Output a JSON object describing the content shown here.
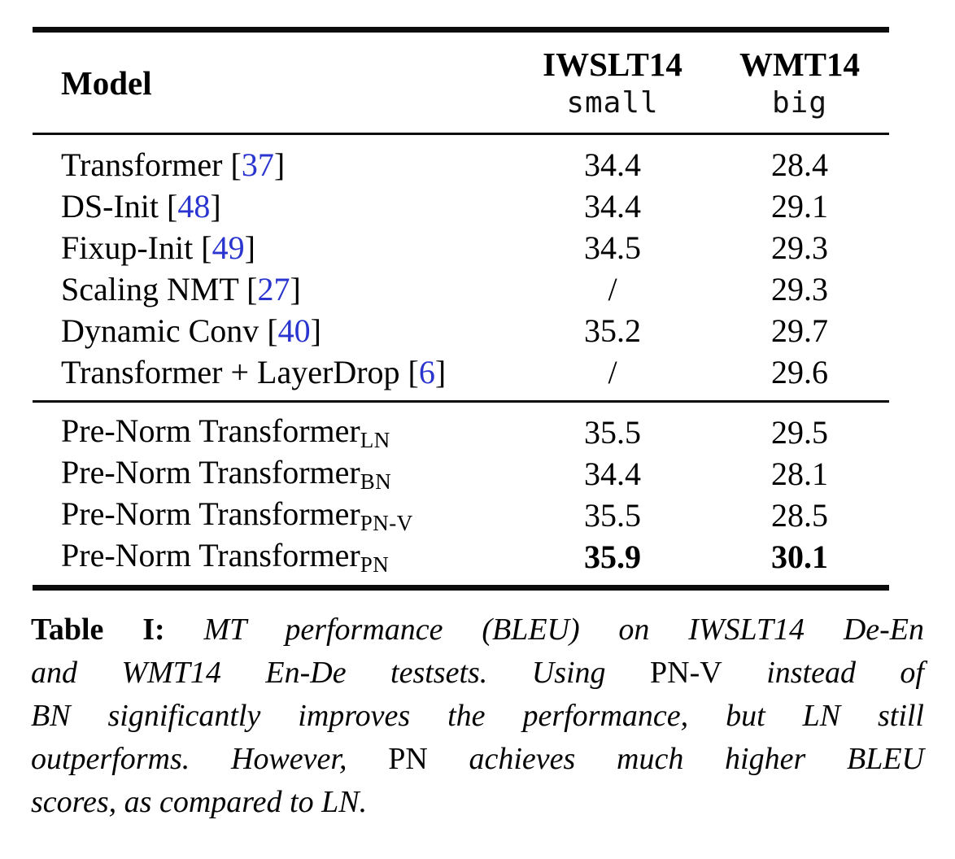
{
  "colors": {
    "background": "#ffffff",
    "text": "#000000",
    "citation_link": "#2a35cf",
    "rule": "#0c0c0c"
  },
  "table": {
    "cite_open": "[",
    "cite_close": "]",
    "columns": [
      {
        "title": "Model",
        "subtitle": ""
      },
      {
        "title": "IWSLT14",
        "subtitle": "small"
      },
      {
        "title": "WMT14",
        "subtitle": "big"
      }
    ],
    "section1": [
      {
        "model": "Transformer ",
        "cite": "37",
        "iwslt": "34.4",
        "wmt": "28.4"
      },
      {
        "model": "DS-Init ",
        "cite": "48",
        "iwslt": "34.4",
        "wmt": "29.1"
      },
      {
        "model": "Fixup-Init ",
        "cite": "49",
        "iwslt": "34.5",
        "wmt": "29.3"
      },
      {
        "model": "Scaling NMT ",
        "cite": "27",
        "iwslt": "/",
        "wmt": "29.3"
      },
      {
        "model": "Dynamic Conv ",
        "cite": "40",
        "iwslt": "35.2",
        "wmt": "29.7"
      },
      {
        "model": "Transformer + LayerDrop ",
        "cite": "6",
        "iwslt": "/",
        "wmt": "29.6"
      }
    ],
    "section2": [
      {
        "model": "Pre-Norm Transformer",
        "sub": "LN",
        "iwslt": "35.5",
        "wmt": "29.5"
      },
      {
        "model": "Pre-Norm Transformer",
        "sub": "BN",
        "iwslt": "34.4",
        "wmt": "28.1"
      },
      {
        "model": "Pre-Norm Transformer",
        "sub": "PN-V",
        "iwslt": "35.5",
        "wmt": "28.5"
      },
      {
        "model": "Pre-Norm Transformer",
        "sub": "PN",
        "iwslt": "35.9",
        "wmt": "30.1"
      }
    ]
  },
  "caption": {
    "lines": [
      {
        "segments": [
          {
            "text": "Table I:",
            "style": "bold"
          },
          {
            "text": " MT performance (BLEU) on IWSLT14 De-En",
            "style": "italic"
          }
        ]
      },
      {
        "segments": [
          {
            "text": "and WMT14 En-De testsets. Using ",
            "style": "italic"
          },
          {
            "text": "PN-V",
            "style": "roman"
          },
          {
            "text": " instead of",
            "style": "italic"
          }
        ]
      },
      {
        "segments": [
          {
            "text": "BN significantly improves the performance, but LN still",
            "style": "italic"
          }
        ]
      },
      {
        "segments": [
          {
            "text": "outperforms. However, ",
            "style": "italic"
          },
          {
            "text": "PN",
            "style": "roman"
          },
          {
            "text": " achieves much higher BLEU",
            "style": "italic"
          }
        ]
      },
      {
        "segments": [
          {
            "text": "scores, as compared to LN.",
            "style": "italic"
          }
        ]
      }
    ]
  }
}
